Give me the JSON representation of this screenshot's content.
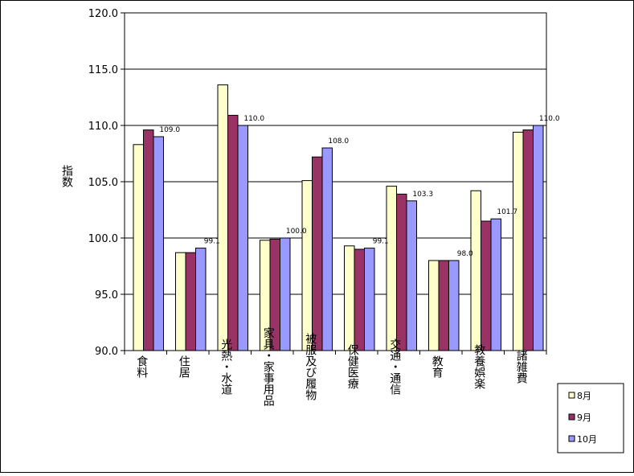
{
  "chart_data": {
    "type": "bar",
    "title": "",
    "ylabel": "指数",
    "xlabel": "",
    "ylim": [
      90,
      120
    ],
    "yticks": [
      "90.0",
      "95.0",
      "100.0",
      "105.0",
      "110.0",
      "115.0",
      "120.0"
    ],
    "grid": true,
    "legend_position": "bottom-right",
    "categories": [
      "食料",
      "住居",
      "光熱・水道",
      "家具・家事用品",
      "被服及び履物",
      "保健医療",
      "交通・通信",
      "教育",
      "教養娯楽",
      "諸雑費"
    ],
    "series": [
      {
        "name": "8月",
        "color": "#ffffcc",
        "values": [
          108.3,
          98.7,
          113.6,
          99.8,
          105.1,
          99.3,
          104.6,
          98.0,
          104.2,
          109.4
        ]
      },
      {
        "name": "9月",
        "color": "#993366",
        "values": [
          109.6,
          98.7,
          110.9,
          99.9,
          107.2,
          99.0,
          103.9,
          98.0,
          101.5,
          109.6
        ]
      },
      {
        "name": "10月",
        "color": "#9999ff",
        "values": [
          109.0,
          99.1,
          110.0,
          100.0,
          108.0,
          99.1,
          103.3,
          98.0,
          101.7,
          110.0
        ]
      }
    ],
    "data_labels": {
      "series": "10月",
      "labels": [
        "109.0",
        "99.1",
        "110.0",
        "100.0",
        "108.0",
        "99.1",
        "103.3",
        "98.0",
        "101.7",
        "110.0"
      ]
    }
  }
}
